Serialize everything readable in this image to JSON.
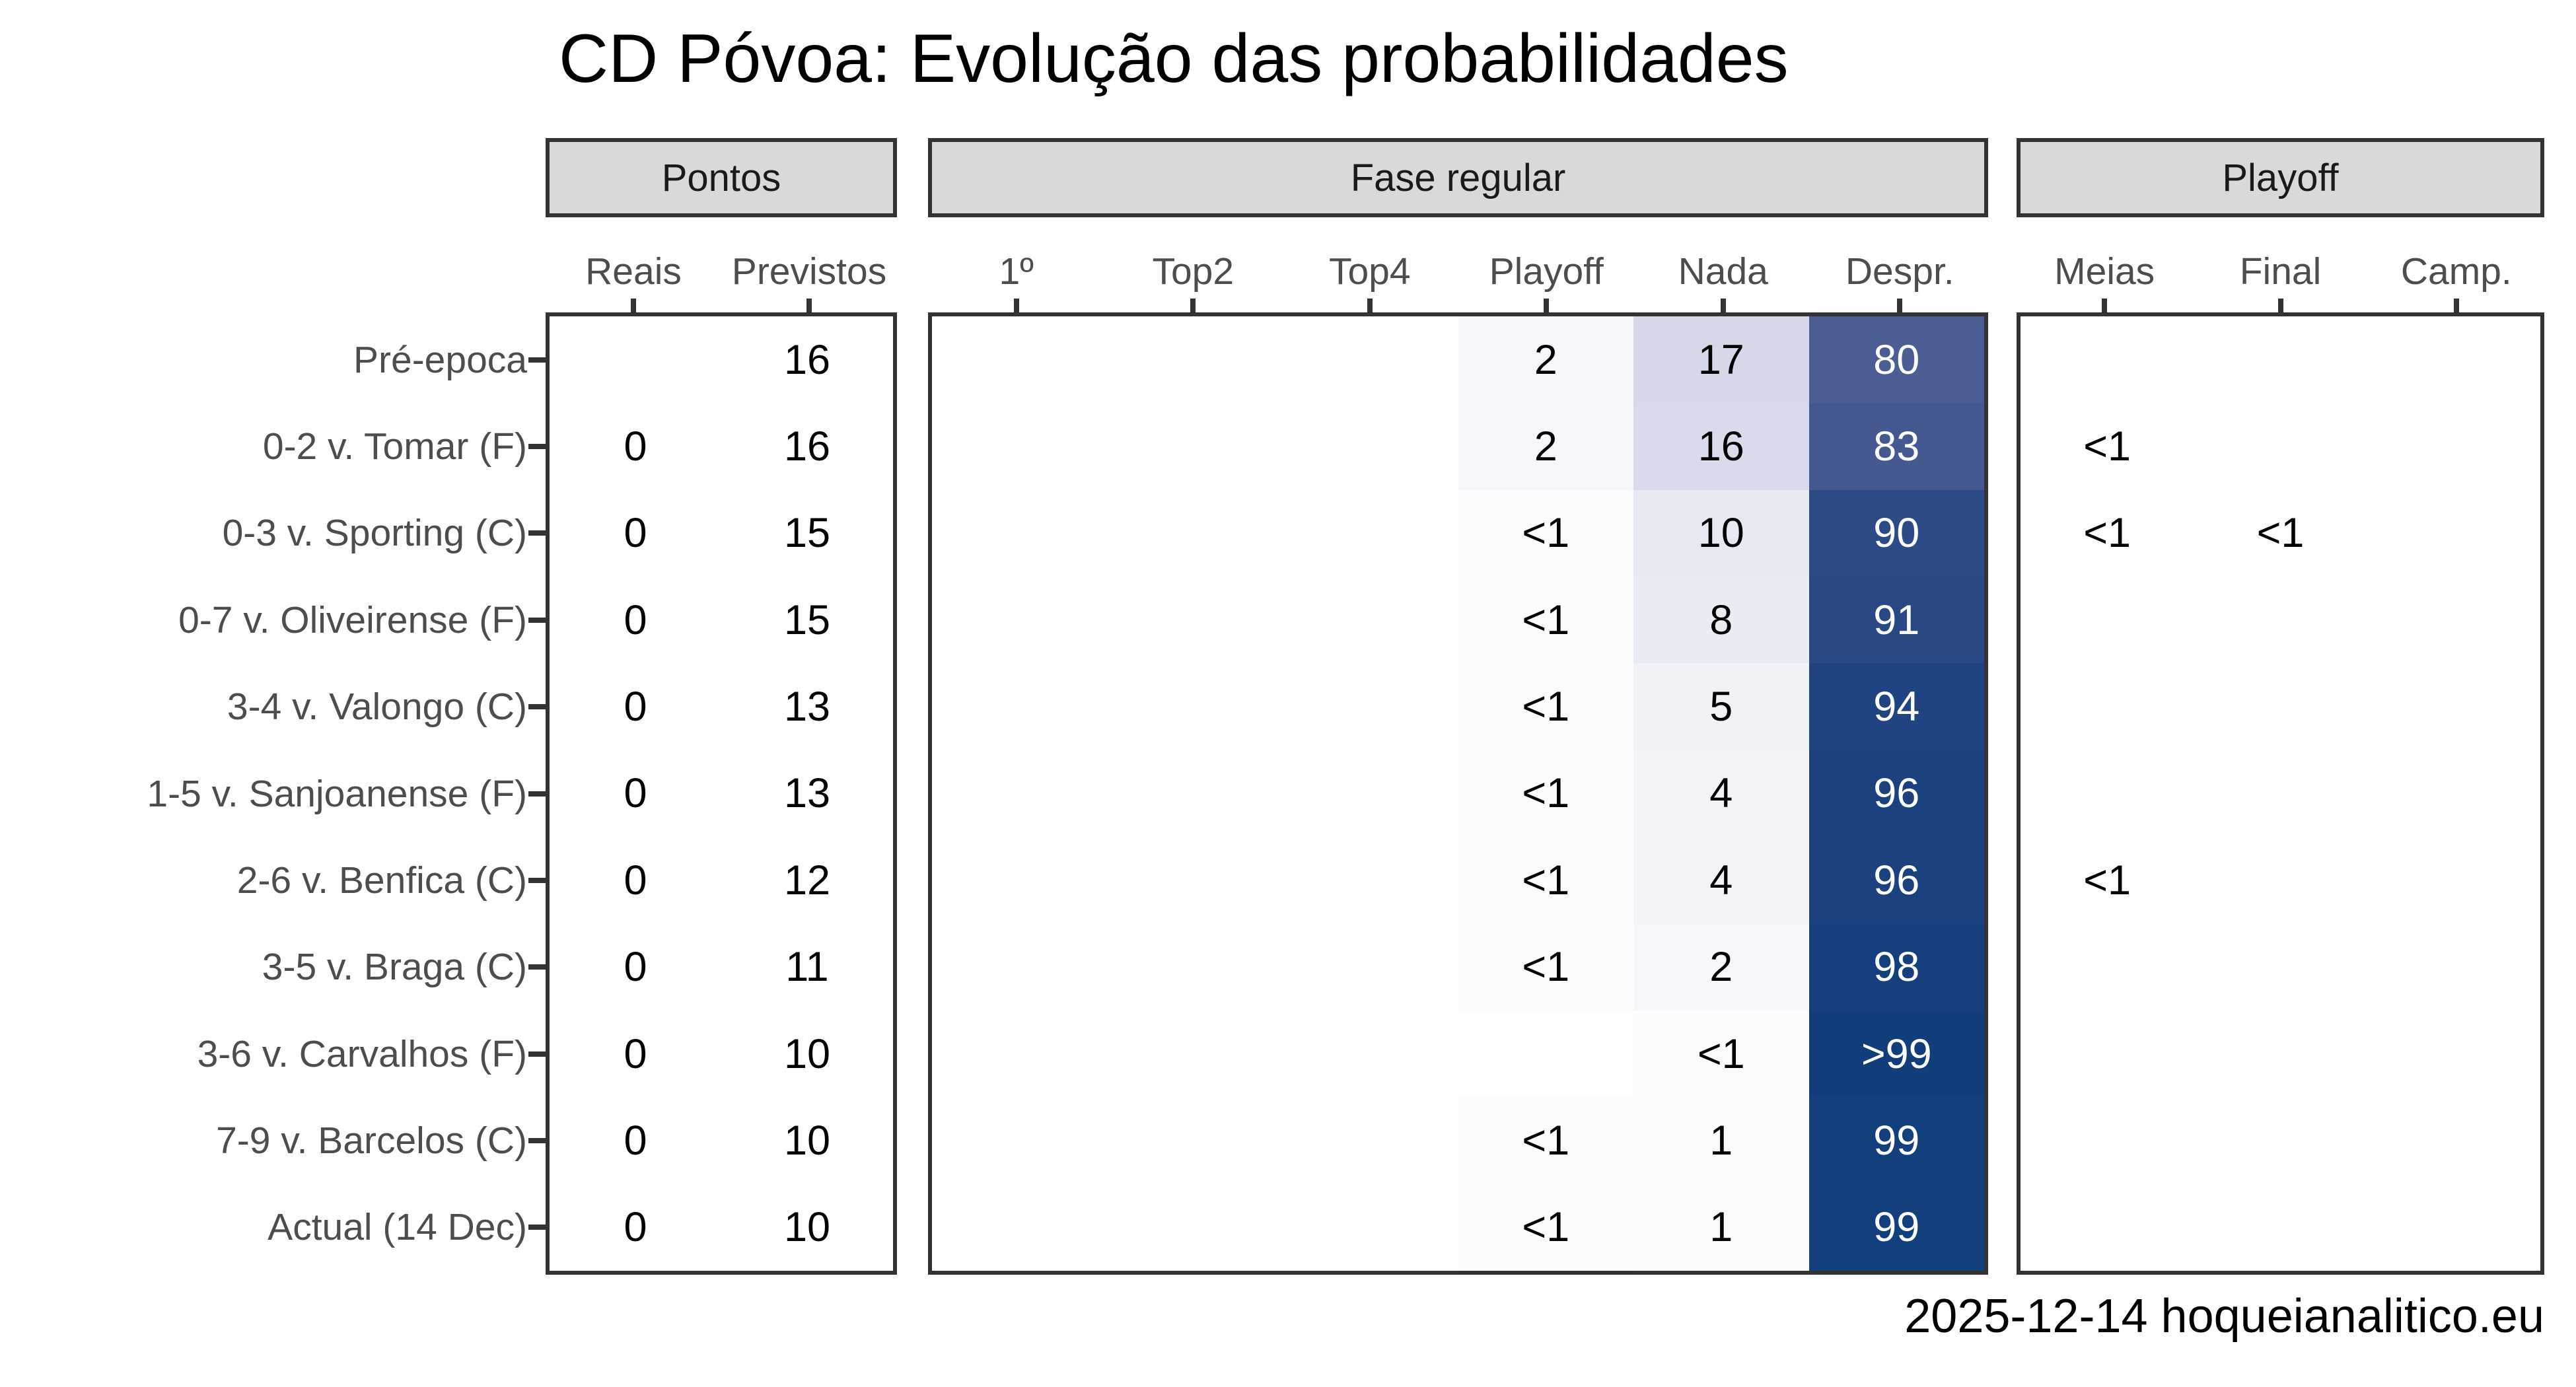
{
  "footer": "2025-12-14 hoqueianalitico.eu",
  "accent_colors": {
    "strip_fill": "#d9d9d9",
    "border": "#333333",
    "axis_text": "#4d4d4d",
    "heat_low": "#ffffff",
    "heat_high": "#123e7b"
  },
  "chart_data": {
    "type": "heatmap",
    "title": "CD Póvoa: Evolução das probabilidades",
    "note_layout": "3 facet panels; rows are matchdays, cells are probabilities in %; white-to-dark-blue fill by probability",
    "row_labels": [
      "Pré-epoca",
      "0-2 v. Tomar (F)",
      "0-3 v. Sporting (C)",
      "0-7 v. Oliveirense (F)",
      "3-4 v. Valongo (C)",
      "1-5 v. Sanjoanense (F)",
      "2-6 v. Benfica (C)",
      "3-5 v. Braga (C)",
      "3-6 v. Carvalhos (F)",
      "7-9 v. Barcelos (C)",
      "Actual (14 Dec)"
    ],
    "panels": [
      {
        "label": "Pontos",
        "columns": [
          "Reais",
          "Previstos"
        ],
        "values": [
          [
            null,
            "16"
          ],
          [
            "0",
            "16"
          ],
          [
            "0",
            "15"
          ],
          [
            "0",
            "15"
          ],
          [
            "0",
            "13"
          ],
          [
            "0",
            "13"
          ],
          [
            "0",
            "12"
          ],
          [
            "0",
            "11"
          ],
          [
            "0",
            "10"
          ],
          [
            "0",
            "10"
          ],
          [
            "0",
            "10"
          ]
        ],
        "bg": null,
        "white_text_cols": []
      },
      {
        "label": "Fase regular",
        "columns": [
          "1º",
          "Top2",
          "Top4",
          "Playoff",
          "Nada",
          "Despr."
        ],
        "values": [
          [
            null,
            null,
            null,
            "2",
            "17",
            "80"
          ],
          [
            null,
            null,
            null,
            "2",
            "16",
            "83"
          ],
          [
            null,
            null,
            null,
            "<1",
            "10",
            "90"
          ],
          [
            null,
            null,
            null,
            "<1",
            "8",
            "91"
          ],
          [
            null,
            null,
            null,
            "<1",
            "5",
            "94"
          ],
          [
            null,
            null,
            null,
            "<1",
            "4",
            "96"
          ],
          [
            null,
            null,
            null,
            "<1",
            "4",
            "96"
          ],
          [
            null,
            null,
            null,
            "<1",
            "2",
            "98"
          ],
          [
            null,
            null,
            null,
            null,
            "<1",
            ">99"
          ],
          [
            null,
            null,
            null,
            "<1",
            "1",
            "99"
          ],
          [
            null,
            null,
            null,
            "<1",
            "1",
            "99"
          ]
        ],
        "bg": [
          [
            "#ffffff",
            "#ffffff",
            "#ffffff",
            "#f6f7fa",
            "#d5d9e9",
            "#4c5d93"
          ],
          [
            "#ffffff",
            "#ffffff",
            "#ffffff",
            "#f6f7fa",
            "#d8dbeb",
            "#455890"
          ],
          [
            "#ffffff",
            "#ffffff",
            "#ffffff",
            "#fbfcfd",
            "#e6e8f2",
            "#2c4a86"
          ],
          [
            "#ffffff",
            "#ffffff",
            "#ffffff",
            "#fbfcfd",
            "#eaecf4",
            "#294884"
          ],
          [
            "#ffffff",
            "#ffffff",
            "#ffffff",
            "#fbfcfd",
            "#f1f2f8",
            "#204381"
          ],
          [
            "#ffffff",
            "#ffffff",
            "#ffffff",
            "#fbfcfd",
            "#f3f4f9",
            "#1b417f"
          ],
          [
            "#ffffff",
            "#ffffff",
            "#ffffff",
            "#fbfcfd",
            "#f3f4f9",
            "#1b417f"
          ],
          [
            "#ffffff",
            "#ffffff",
            "#ffffff",
            "#fbfcfd",
            "#f7f8fb",
            "#16407d"
          ],
          [
            "#ffffff",
            "#ffffff",
            "#ffffff",
            "#ffffff",
            "#fcfcfe",
            "#113e7b"
          ],
          [
            "#ffffff",
            "#ffffff",
            "#ffffff",
            "#fbfcfd",
            "#fafbfd",
            "#133f7c"
          ],
          [
            "#ffffff",
            "#ffffff",
            "#ffffff",
            "#fbfcfd",
            "#fafbfd",
            "#133f7c"
          ]
        ],
        "white_text_cols": [
          5
        ]
      },
      {
        "label": "Playoff",
        "columns": [
          "Meias",
          "Final",
          "Camp."
        ],
        "values": [
          [
            null,
            null,
            null
          ],
          [
            "<1",
            null,
            null
          ],
          [
            "<1",
            "<1",
            null
          ],
          [
            null,
            null,
            null
          ],
          [
            null,
            null,
            null
          ],
          [
            null,
            null,
            null
          ],
          [
            "<1",
            null,
            null
          ],
          [
            null,
            null,
            null
          ],
          [
            null,
            null,
            null
          ],
          [
            null,
            null,
            null
          ],
          [
            null,
            null,
            null
          ]
        ],
        "bg": null,
        "white_text_cols": []
      }
    ]
  }
}
